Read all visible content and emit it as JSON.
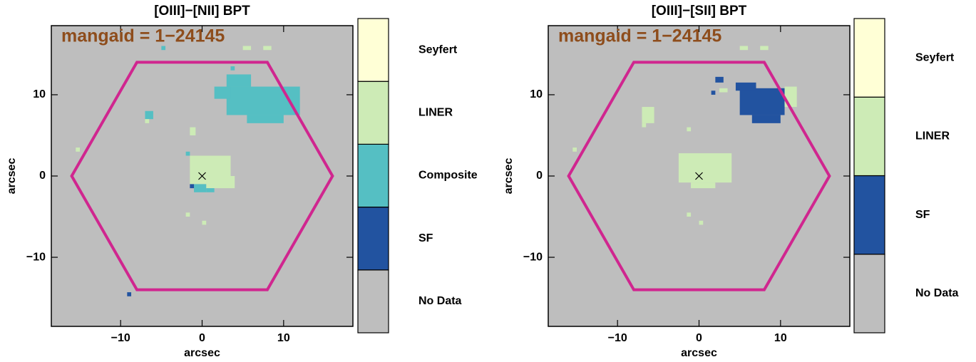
{
  "chart_data": [
    {
      "type": "map",
      "title": "[OIII]−[NII] BPT",
      "annotation": "mangaid = 1−24145",
      "xlabel": "arcsec",
      "ylabel": "arcsec",
      "xlim": [
        -18.5,
        18.5
      ],
      "ylim": [
        -18.5,
        18.5
      ],
      "xticks": [
        {
          "value": -10,
          "label": "−10"
        },
        0,
        10
      ],
      "yticks": [
        {
          "value": -10,
          "label": "−10"
        },
        0,
        10
      ],
      "background_color": "#bebebe",
      "footprint_color": "#d0268f",
      "classes": [
        {
          "label": "No Data",
          "color": "#bebebe"
        },
        {
          "label": "SF",
          "color": "#2253a0"
        },
        {
          "label": "Composite",
          "color": "#55bfc3"
        },
        {
          "label": "LINER",
          "color": "#cdebb6"
        },
        {
          "label": "Seyfert",
          "color": "#ffffd6"
        }
      ],
      "footprint": {
        "x": [
          -16,
          -8,
          8,
          16,
          8,
          -8
        ],
        "y": [
          0,
          14,
          14,
          0,
          -14,
          -14
        ]
      },
      "center": {
        "x": 0,
        "y": 0
      },
      "regions": [
        {
          "class": 2,
          "x": [
            3,
            12
          ],
          "y": [
            7.5,
            11
          ]
        },
        {
          "class": 2,
          "x": [
            3,
            6
          ],
          "y": [
            11,
            12.5
          ]
        },
        {
          "class": 2,
          "x": [
            5.5,
            10
          ],
          "y": [
            6.5,
            7.5
          ]
        },
        {
          "class": 2,
          "x": [
            1.5,
            3.5
          ],
          "y": [
            9.5,
            11
          ]
        },
        {
          "class": 2,
          "x": [
            3.5,
            4
          ],
          "y": [
            13,
            13.5
          ]
        },
        {
          "class": 2,
          "x": [
            -7,
            -6
          ],
          "y": [
            7,
            8
          ]
        },
        {
          "class": 3,
          "x": [
            -7,
            -6.5
          ],
          "y": [
            6.5,
            7
          ]
        },
        {
          "class": 3,
          "x": [
            -1.5,
            3.5
          ],
          "y": [
            -1,
            2.5
          ]
        },
        {
          "class": 3,
          "x": [
            0.5,
            4
          ],
          "y": [
            -1.5,
            0
          ]
        },
        {
          "class": 2,
          "x": [
            -1,
            0.5
          ],
          "y": [
            -2,
            -1
          ]
        },
        {
          "class": 1,
          "x": [
            -1.5,
            -1
          ],
          "y": [
            -1.5,
            -1
          ]
        },
        {
          "class": 2,
          "x": [
            0.5,
            1.5
          ],
          "y": [
            -2,
            -1.5
          ]
        },
        {
          "class": 2,
          "x": [
            -2,
            -1.5
          ],
          "y": [
            2.5,
            3
          ]
        },
        {
          "class": 3,
          "x": [
            -1.5,
            -0.8
          ],
          "y": [
            5,
            6
          ]
        },
        {
          "class": 2,
          "x": [
            -5,
            -4.5
          ],
          "y": [
            15.5,
            16
          ]
        },
        {
          "class": 3,
          "x": [
            5,
            6
          ],
          "y": [
            15.5,
            16
          ]
        },
        {
          "class": 3,
          "x": [
            7.5,
            8.5
          ],
          "y": [
            15.5,
            16
          ]
        },
        {
          "class": 3,
          "x": [
            -15.5,
            -15
          ],
          "y": [
            3,
            3.5
          ]
        },
        {
          "class": 3,
          "x": [
            -2,
            -1.5
          ],
          "y": [
            -4.5,
            -5
          ]
        },
        {
          "class": 3,
          "x": [
            0,
            0.5
          ],
          "y": [
            -5.5,
            -6
          ]
        },
        {
          "class": 1,
          "x": [
            -9.2,
            -8.7
          ],
          "y": [
            -14.8,
            -14.3
          ]
        }
      ]
    },
    {
      "type": "map",
      "title": "[OIII]−[SII] BPT",
      "annotation": "mangaid = 1−24145",
      "xlabel": "arcsec",
      "ylabel": "arcsec",
      "xlim": [
        -18.5,
        18.5
      ],
      "ylim": [
        -18.5,
        18.5
      ],
      "xticks": [
        {
          "value": -10,
          "label": "−10"
        },
        0,
        10
      ],
      "yticks": [
        {
          "value": -10,
          "label": "−10"
        },
        0,
        10
      ],
      "background_color": "#bebebe",
      "footprint_color": "#d0268f",
      "classes": [
        {
          "label": "No Data",
          "color": "#bebebe"
        },
        {
          "label": "SF",
          "color": "#2253a0"
        },
        {
          "label": "LINER",
          "color": "#cdebb6"
        },
        {
          "label": "Seyfert",
          "color": "#ffffd6"
        }
      ],
      "footprint": {
        "x": [
          -16,
          -8,
          8,
          16,
          8,
          -8
        ],
        "y": [
          0,
          14,
          14,
          0,
          -14,
          -14
        ]
      },
      "center": {
        "x": 0,
        "y": 0
      },
      "regions": [
        {
          "class": 1,
          "x": [
            5,
            10.5
          ],
          "y": [
            7.5,
            10.8
          ]
        },
        {
          "class": 1,
          "x": [
            6.5,
            10
          ],
          "y": [
            6.5,
            7.5
          ]
        },
        {
          "class": 1,
          "x": [
            4.5,
            7
          ],
          "y": [
            10.5,
            11.5
          ]
        },
        {
          "class": 1,
          "x": [
            2,
            3
          ],
          "y": [
            11.5,
            12.2
          ]
        },
        {
          "class": 1,
          "x": [
            1.5,
            2
          ],
          "y": [
            10,
            10.5
          ]
        },
        {
          "class": 2,
          "x": [
            10.5,
            12
          ],
          "y": [
            8.5,
            11
          ]
        },
        {
          "class": 2,
          "x": [
            2.5,
            3.5
          ],
          "y": [
            10.3,
            10.8
          ]
        },
        {
          "class": 2,
          "x": [
            -2.5,
            4
          ],
          "y": [
            -0.8,
            2.8
          ]
        },
        {
          "class": 2,
          "x": [
            -1,
            2
          ],
          "y": [
            -1.5,
            -0.8
          ]
        },
        {
          "class": 2,
          "x": [
            -7,
            -5.5
          ],
          "y": [
            6.5,
            8.5
          ]
        },
        {
          "class": 2,
          "x": [
            -7,
            -6.5
          ],
          "y": [
            6,
            6.5
          ]
        },
        {
          "class": 2,
          "x": [
            -1.5,
            -1
          ],
          "y": [
            5.5,
            6
          ]
        },
        {
          "class": 2,
          "x": [
            5,
            6
          ],
          "y": [
            15.5,
            16
          ]
        },
        {
          "class": 2,
          "x": [
            7.5,
            8.5
          ],
          "y": [
            15.5,
            16
          ]
        },
        {
          "class": 2,
          "x": [
            -15.5,
            -15
          ],
          "y": [
            3,
            3.5
          ]
        },
        {
          "class": 2,
          "x": [
            -1.5,
            -1
          ],
          "y": [
            -4.5,
            -5
          ]
        },
        {
          "class": 2,
          "x": [
            0,
            0.5
          ],
          "y": [
            -5.5,
            -6
          ]
        }
      ]
    }
  ]
}
